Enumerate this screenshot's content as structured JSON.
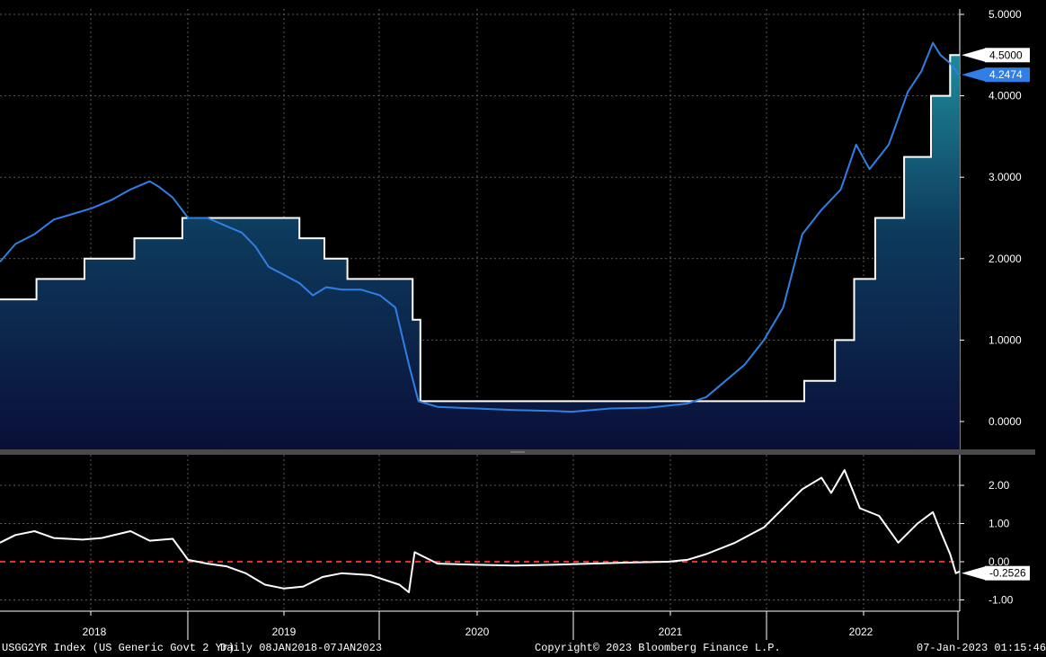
{
  "chart_data": [
    {
      "type": "line",
      "title": "",
      "xlabel": "",
      "ylabel": "",
      "x_ticks": [
        "2018",
        "2019",
        "2020",
        "2021",
        "2022"
      ],
      "y_ticks": [
        "5.0000",
        "4.0000",
        "3.0000",
        "2.0000",
        "1.0000",
        "0.0000"
      ],
      "ylim": [
        -0.3,
        5.0
      ],
      "xlim": [
        2018.02,
        2023.02
      ],
      "grid": true,
      "series": [
        {
          "name": "",
          "color": "#2f7fe6",
          "last_value_label": "4.2474",
          "points": [
            [
              2018.02,
              1.96
            ],
            [
              2018.1,
              2.18
            ],
            [
              2018.2,
              2.3
            ],
            [
              2018.3,
              2.48
            ],
            [
              2018.4,
              2.55
            ],
            [
              2018.5,
              2.62
            ],
            [
              2018.6,
              2.72
            ],
            [
              2018.7,
              2.85
            ],
            [
              2018.8,
              2.95
            ],
            [
              2018.85,
              2.88
            ],
            [
              2018.92,
              2.75
            ],
            [
              2019.0,
              2.5
            ],
            [
              2019.1,
              2.5
            ],
            [
              2019.2,
              2.4
            ],
            [
              2019.28,
              2.32
            ],
            [
              2019.35,
              2.15
            ],
            [
              2019.42,
              1.9
            ],
            [
              2019.5,
              1.8
            ],
            [
              2019.58,
              1.7
            ],
            [
              2019.65,
              1.55
            ],
            [
              2019.72,
              1.65
            ],
            [
              2019.8,
              1.62
            ],
            [
              2019.9,
              1.62
            ],
            [
              2020.0,
              1.55
            ],
            [
              2020.08,
              1.4
            ],
            [
              2020.15,
              0.7
            ],
            [
              2020.2,
              0.25
            ],
            [
              2020.3,
              0.18
            ],
            [
              2020.5,
              0.16
            ],
            [
              2020.7,
              0.14
            ],
            [
              2020.9,
              0.13
            ],
            [
              2021.0,
              0.12
            ],
            [
              2021.2,
              0.16
            ],
            [
              2021.4,
              0.17
            ],
            [
              2021.6,
              0.22
            ],
            [
              2021.7,
              0.3
            ],
            [
              2021.8,
              0.5
            ],
            [
              2021.9,
              0.7
            ],
            [
              2022.0,
              1.0
            ],
            [
              2022.1,
              1.4
            ],
            [
              2022.2,
              2.3
            ],
            [
              2022.3,
              2.6
            ],
            [
              2022.4,
              2.85
            ],
            [
              2022.48,
              3.4
            ],
            [
              2022.55,
              3.1
            ],
            [
              2022.65,
              3.4
            ],
            [
              2022.75,
              4.05
            ],
            [
              2022.82,
              4.3
            ],
            [
              2022.88,
              4.65
            ],
            [
              2022.92,
              4.5
            ],
            [
              2022.97,
              4.4
            ],
            [
              2023.02,
              4.2474
            ]
          ]
        },
        {
          "name": "",
          "color": "#ffffff",
          "fill": "gradient",
          "last_value_label": "4.5000",
          "step": true,
          "points": [
            [
              2018.02,
              1.5
            ],
            [
              2018.21,
              1.75
            ],
            [
              2018.46,
              2.0
            ],
            [
              2018.72,
              2.25
            ],
            [
              2018.97,
              2.5
            ],
            [
              2019.58,
              2.25
            ],
            [
              2019.71,
              2.0
            ],
            [
              2019.83,
              1.75
            ],
            [
              2020.17,
              1.25
            ],
            [
              2020.21,
              0.25
            ],
            [
              2022.21,
              0.5
            ],
            [
              2022.37,
              1.0
            ],
            [
              2022.47,
              1.75
            ],
            [
              2022.58,
              2.5
            ],
            [
              2022.73,
              3.25
            ],
            [
              2022.87,
              4.0
            ],
            [
              2022.97,
              4.5
            ],
            [
              2023.02,
              4.5
            ]
          ]
        }
      ]
    },
    {
      "type": "line",
      "title": "",
      "y_ticks": [
        "2.00",
        "1.00",
        "0.00",
        "-1.00"
      ],
      "ylim": [
        -1.1,
        2.6
      ],
      "xlim": [
        2018.02,
        2023.02
      ],
      "reference_line": {
        "value": 0.0,
        "color": "#e03030",
        "style": "dashed"
      },
      "series": [
        {
          "name": "",
          "color": "#ffffff",
          "last_value_label": "-0.2526",
          "points": [
            [
              2018.02,
              0.5
            ],
            [
              2018.1,
              0.7
            ],
            [
              2018.2,
              0.8
            ],
            [
              2018.3,
              0.62
            ],
            [
              2018.45,
              0.58
            ],
            [
              2018.55,
              0.62
            ],
            [
              2018.7,
              0.8
            ],
            [
              2018.8,
              0.55
            ],
            [
              2018.92,
              0.6
            ],
            [
              2019.0,
              0.05
            ],
            [
              2019.1,
              -0.05
            ],
            [
              2019.2,
              -0.12
            ],
            [
              2019.3,
              -0.3
            ],
            [
              2019.4,
              -0.6
            ],
            [
              2019.5,
              -0.7
            ],
            [
              2019.6,
              -0.65
            ],
            [
              2019.7,
              -0.4
            ],
            [
              2019.8,
              -0.3
            ],
            [
              2019.95,
              -0.35
            ],
            [
              2020.1,
              -0.6
            ],
            [
              2020.15,
              -0.8
            ],
            [
              2020.18,
              0.25
            ],
            [
              2020.3,
              -0.05
            ],
            [
              2020.5,
              -0.08
            ],
            [
              2020.7,
              -0.1
            ],
            [
              2020.9,
              -0.08
            ],
            [
              2021.1,
              -0.05
            ],
            [
              2021.3,
              -0.02
            ],
            [
              2021.5,
              0.0
            ],
            [
              2021.6,
              0.05
            ],
            [
              2021.7,
              0.2
            ],
            [
              2021.85,
              0.5
            ],
            [
              2022.0,
              0.9
            ],
            [
              2022.1,
              1.4
            ],
            [
              2022.2,
              1.9
            ],
            [
              2022.3,
              2.2
            ],
            [
              2022.35,
              1.8
            ],
            [
              2022.42,
              2.4
            ],
            [
              2022.5,
              1.4
            ],
            [
              2022.6,
              1.2
            ],
            [
              2022.7,
              0.5
            ],
            [
              2022.8,
              1.0
            ],
            [
              2022.88,
              1.3
            ],
            [
              2022.92,
              0.8
            ],
            [
              2022.97,
              0.2
            ],
            [
              2023.0,
              -0.3
            ],
            [
              2023.02,
              -0.2526
            ]
          ]
        }
      ]
    }
  ],
  "footer": {
    "index_label": "USGG2YR Index (US Generic Govt 2 Yr)",
    "range_label": "Daily 08JAN2018-07JAN2023",
    "copyright": "Copyright© 2023 Bloomberg Finance L.P.",
    "timestamp": "07-Jan-2023 01:15:46"
  }
}
